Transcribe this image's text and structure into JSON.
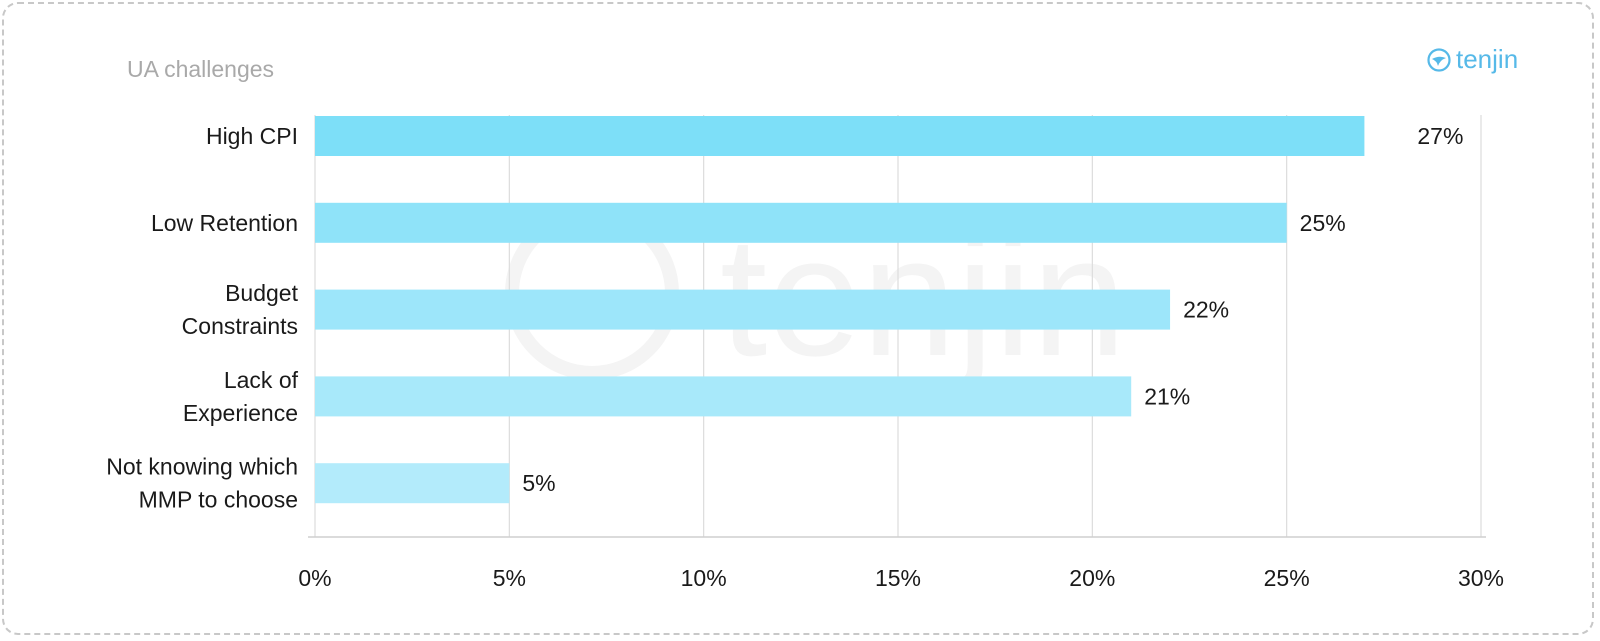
{
  "brand": {
    "name": "tenjin",
    "color": "#56b9e8",
    "icon": "tenjin-logo-icon"
  },
  "chart_data": {
    "type": "bar",
    "orientation": "horizontal",
    "title": "UA challenges",
    "categories": [
      [
        "High CPI"
      ],
      [
        "Low Retention"
      ],
      [
        "Budget",
        "Constraints"
      ],
      [
        "Lack of",
        "Experience"
      ],
      [
        "Not knowing which",
        "MMP to choose"
      ]
    ],
    "values": [
      27,
      25,
      22,
      21,
      5
    ],
    "value_labels": [
      "27%",
      "25%",
      "22%",
      "21%",
      "5%"
    ],
    "bar_colors": [
      "#7ddff8",
      "#8fe3f9",
      "#9de6fa",
      "#a8e9fa",
      "#b3ebfb"
    ],
    "xlim": [
      0,
      30
    ],
    "xticks": [
      0,
      5,
      10,
      15,
      20,
      25,
      30
    ],
    "xtick_labels": [
      "0%",
      "5%",
      "10%",
      "15%",
      "20%",
      "25%",
      "30%"
    ],
    "grid": "vertical",
    "xlabel": "",
    "ylabel": "",
    "watermark": "tenjin"
  }
}
